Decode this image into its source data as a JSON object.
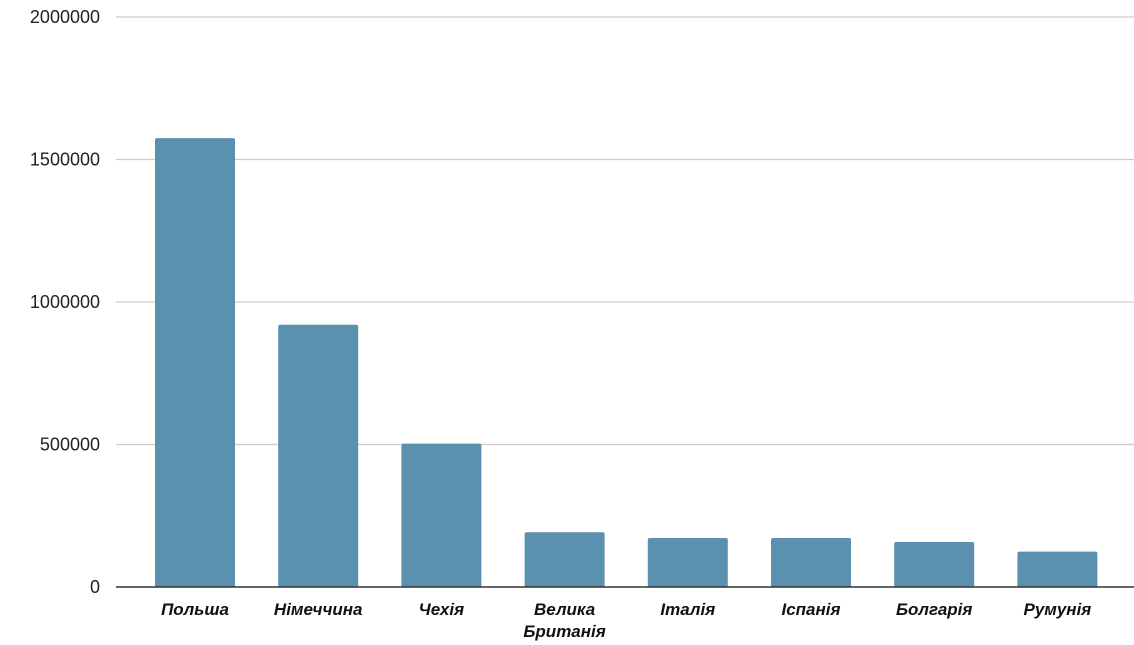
{
  "colors": {
    "bar": "#5b91ae",
    "grid": "#cccccc",
    "axis": "#333333"
  },
  "chart_data": {
    "type": "bar",
    "title": "",
    "xlabel": "",
    "ylabel": "",
    "categories": [
      [
        "Польша"
      ],
      [
        "Німеччина"
      ],
      [
        "Чехія"
      ],
      [
        "Велика",
        "Британія"
      ],
      [
        "Італія"
      ],
      [
        "Іспанія"
      ],
      [
        "Болгарія"
      ],
      [
        "Румунія"
      ]
    ],
    "values": [
      1575000,
      920000,
      503000,
      192000,
      172000,
      172000,
      158000,
      124000
    ],
    "ylim": [
      0,
      2000000
    ],
    "yticks": [
      0,
      500000,
      1000000,
      1500000,
      2000000
    ],
    "grid": true,
    "legend": "none"
  }
}
